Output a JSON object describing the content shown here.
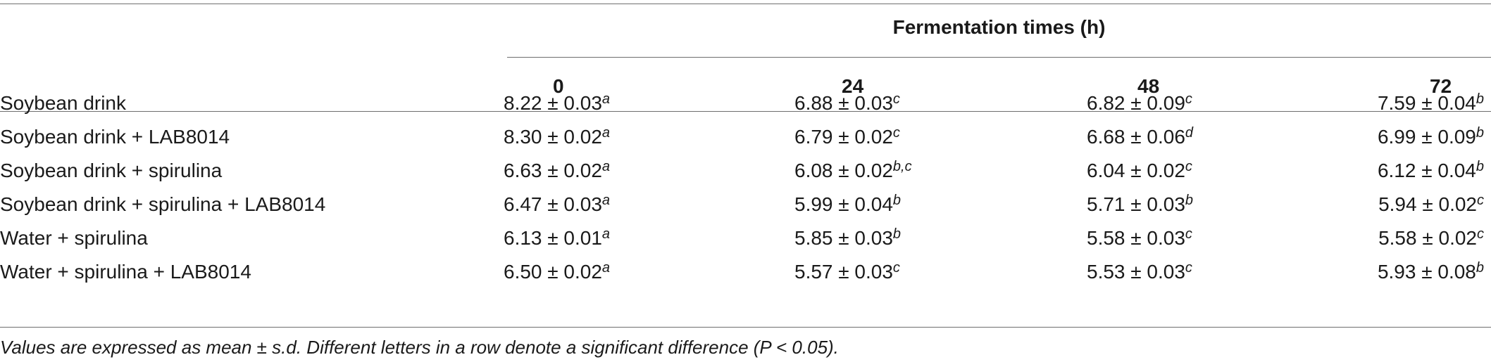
{
  "header": {
    "span_label": "Fermentation times (h)",
    "columns": [
      "0",
      "24",
      "48",
      "72"
    ]
  },
  "rows": [
    {
      "label": "Soybean drink",
      "cells": [
        {
          "value": "8.22 ± 0.03",
          "letter": "a"
        },
        {
          "value": "6.88 ± 0.03",
          "letter": "c"
        },
        {
          "value": "6.82 ± 0.09",
          "letter": "c"
        },
        {
          "value": "7.59 ± 0.04",
          "letter": "b"
        }
      ]
    },
    {
      "label": "Soybean drink + LAB8014",
      "cells": [
        {
          "value": "8.30 ± 0.02",
          "letter": "a"
        },
        {
          "value": "6.79 ± 0.02",
          "letter": "c"
        },
        {
          "value": "6.68 ± 0.06",
          "letter": "d"
        },
        {
          "value": "6.99 ± 0.09",
          "letter": "b"
        }
      ]
    },
    {
      "label": "Soybean drink + spirulina",
      "cells": [
        {
          "value": "6.63 ± 0.02",
          "letter": "a"
        },
        {
          "value": "6.08 ± 0.02",
          "letter": "b,c"
        },
        {
          "value": "6.04 ± 0.02",
          "letter": "c"
        },
        {
          "value": "6.12 ± 0.04",
          "letter": "b"
        }
      ]
    },
    {
      "label": "Soybean drink + spirulina + LAB8014",
      "cells": [
        {
          "value": "6.47 ± 0.03",
          "letter": "a"
        },
        {
          "value": "5.99 ± 0.04",
          "letter": "b"
        },
        {
          "value": "5.71 ± 0.03",
          "letter": "b"
        },
        {
          "value": "5.94 ± 0.02",
          "letter": "c"
        }
      ]
    },
    {
      "label": "Water + spirulina",
      "cells": [
        {
          "value": "6.13 ± 0.01",
          "letter": "a"
        },
        {
          "value": "5.85 ± 0.03",
          "letter": "b"
        },
        {
          "value": "5.58 ± 0.03",
          "letter": "c"
        },
        {
          "value": "5.58 ± 0.02",
          "letter": "c"
        }
      ]
    },
    {
      "label": "Water + spirulina + LAB8014",
      "cells": [
        {
          "value": "6.50 ± 0.02",
          "letter": "a"
        },
        {
          "value": "5.57 ± 0.03",
          "letter": "c"
        },
        {
          "value": "5.53 ± 0.03",
          "letter": "c"
        },
        {
          "value": "5.93 ± 0.08",
          "letter": "b"
        }
      ]
    }
  ],
  "footnote": "Values are expressed as mean ± s.d. Different letters in a row denote a significant difference (P < 0.05)."
}
